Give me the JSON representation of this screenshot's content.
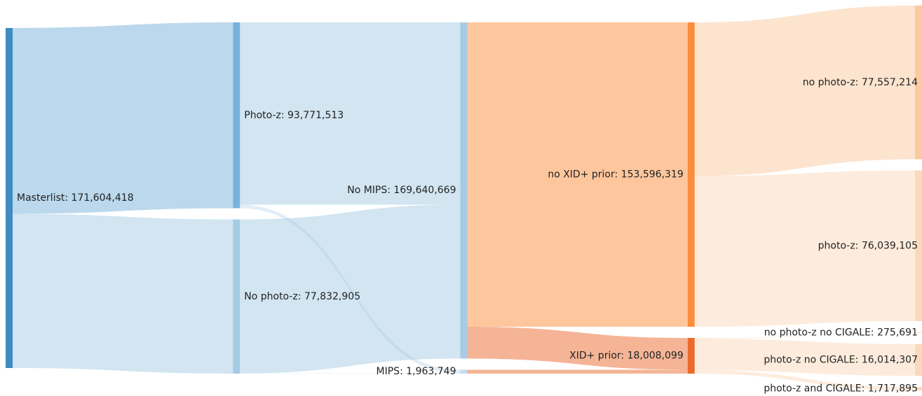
{
  "chart_data": {
    "type": "sankey",
    "nodes": {
      "labels": [
        "Masterlist: 171,604,418",
        "Photo-z: 93,771,513",
        "No photo-z: 77,832,905",
        "No MIPS: 169,640,669",
        "MIPS: 1,963,749",
        "no XID+ prior: 153,596,319",
        "XID+ prior: 18,008,099",
        "no photo-z: 77,557,214",
        "photo-z: 76,039,105",
        "no photo-z no CIGALE: 275,691",
        "photo-z no CIGALE: 16,014,307",
        "photo-z and CIGALE: 1,717,895"
      ],
      "values": [
        171604418,
        93771513,
        77832905,
        169640669,
        1963749,
        153596319,
        18008099,
        77557214,
        76039105,
        275691,
        16014307,
        1717895
      ],
      "colors": [
        "#3f8bc2",
        "#78b2da",
        "#a6cce4",
        "#a6cce4",
        "#c4dcef",
        "#fd8d3c",
        "#ec6a2e",
        "#fcc9a0",
        "#fcd9bb",
        "#fcd9bb",
        "#fcd9bb",
        "#fcd9bb"
      ]
    },
    "links": [
      {
        "source": 0,
        "target": 1,
        "value": 93771513
      },
      {
        "source": 0,
        "target": 2,
        "value": 77832905
      },
      {
        "source": 1,
        "target": 3,
        "value": 91971513
      },
      {
        "source": 1,
        "target": 4,
        "value": 1800000
      },
      {
        "source": 2,
        "target": 3,
        "value": 77669156
      },
      {
        "source": 2,
        "target": 4,
        "value": 163749
      },
      {
        "source": 3,
        "target": 5,
        "value": 153596319
      },
      {
        "source": 3,
        "target": 6,
        "value": 16044350
      },
      {
        "source": 4,
        "target": 6,
        "value": 1963749
      },
      {
        "source": 5,
        "target": 7,
        "value": 77557214
      },
      {
        "source": 5,
        "target": 8,
        "value": 76039105
      },
      {
        "source": 6,
        "target": 9,
        "value": 275691
      },
      {
        "source": 6,
        "target": 10,
        "value": 16014307
      },
      {
        "source": 6,
        "target": 11,
        "value": 1717895
      }
    ]
  }
}
